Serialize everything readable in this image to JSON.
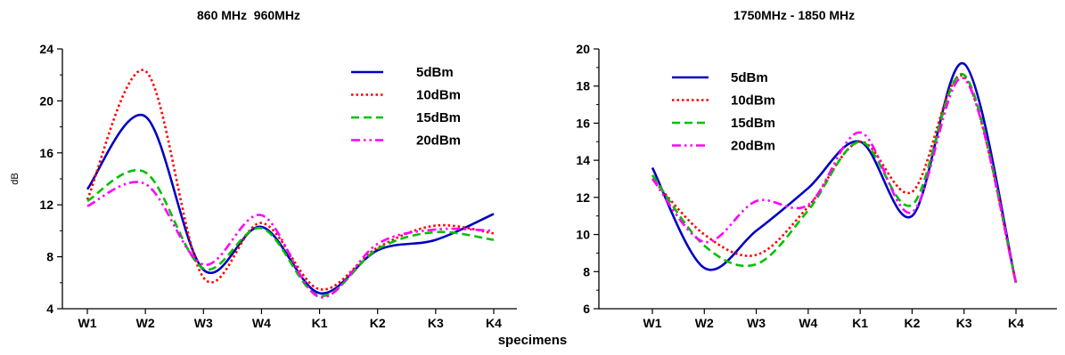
{
  "figure": {
    "xlabel": "specimens"
  },
  "chart_data": [
    {
      "type": "line",
      "title": "860 MHz  960MHz",
      "xlabel": "",
      "ylabel": "dB",
      "categories": [
        "W1",
        "W2",
        "W3",
        "W4",
        "K1",
        "K2",
        "K3",
        "K4"
      ],
      "ylim": [
        4,
        24
      ],
      "yticks": [
        "4",
        "8",
        "12",
        "16",
        "20",
        "24"
      ],
      "grid": false,
      "legend": "top-right",
      "series": [
        {
          "name": "5dBm",
          "color": "#0000c0",
          "dash": "solid",
          "values": [
            13.2,
            18.8,
            7.0,
            10.3,
            5.2,
            8.5,
            9.3,
            11.3
          ]
        },
        {
          "name": "10dBm",
          "color": "#ff0000",
          "dash": "dot",
          "values": [
            12.4,
            22.3,
            6.4,
            10.6,
            5.5,
            8.7,
            10.4,
            9.8
          ]
        },
        {
          "name": "15dBm",
          "color": "#00c000",
          "dash": "dash",
          "values": [
            12.3,
            14.5,
            7.1,
            10.2,
            5.0,
            8.6,
            9.9,
            9.3
          ]
        },
        {
          "name": "20dBm",
          "color": "#ff00ff",
          "dash": "dashdot",
          "values": [
            11.9,
            13.6,
            7.4,
            11.2,
            4.9,
            9.0,
            10.1,
            10.0
          ]
        }
      ]
    },
    {
      "type": "line",
      "title": "1750MHz - 1850 MHz",
      "xlabel": "",
      "ylabel": "",
      "categories": [
        "W1",
        "W2",
        "W3",
        "W4",
        "K1",
        "K2",
        "K3",
        "K4"
      ],
      "ylim": [
        6,
        20
      ],
      "yticks": [
        "6",
        "8",
        "10",
        "12",
        "14",
        "16",
        "18",
        "20"
      ],
      "grid": false,
      "legend": "top-left",
      "series": [
        {
          "name": "5dBm",
          "color": "#0000c0",
          "dash": "solid",
          "values": [
            13.6,
            8.2,
            10.2,
            12.5,
            15.0,
            11.0,
            19.2,
            7.4
          ]
        },
        {
          "name": "10dBm",
          "color": "#ff0000",
          "dash": "dot",
          "values": [
            13.0,
            10.0,
            8.9,
            11.5,
            15.0,
            12.3,
            18.5,
            7.4
          ]
        },
        {
          "name": "15dBm",
          "color": "#00c000",
          "dash": "dash",
          "values": [
            13.2,
            9.4,
            8.4,
            11.3,
            15.0,
            11.6,
            18.6,
            7.4
          ]
        },
        {
          "name": "20dBm",
          "color": "#ff00ff",
          "dash": "dashdot",
          "values": [
            13.0,
            9.6,
            11.8,
            11.6,
            15.5,
            11.2,
            18.4,
            7.4
          ]
        }
      ]
    }
  ]
}
